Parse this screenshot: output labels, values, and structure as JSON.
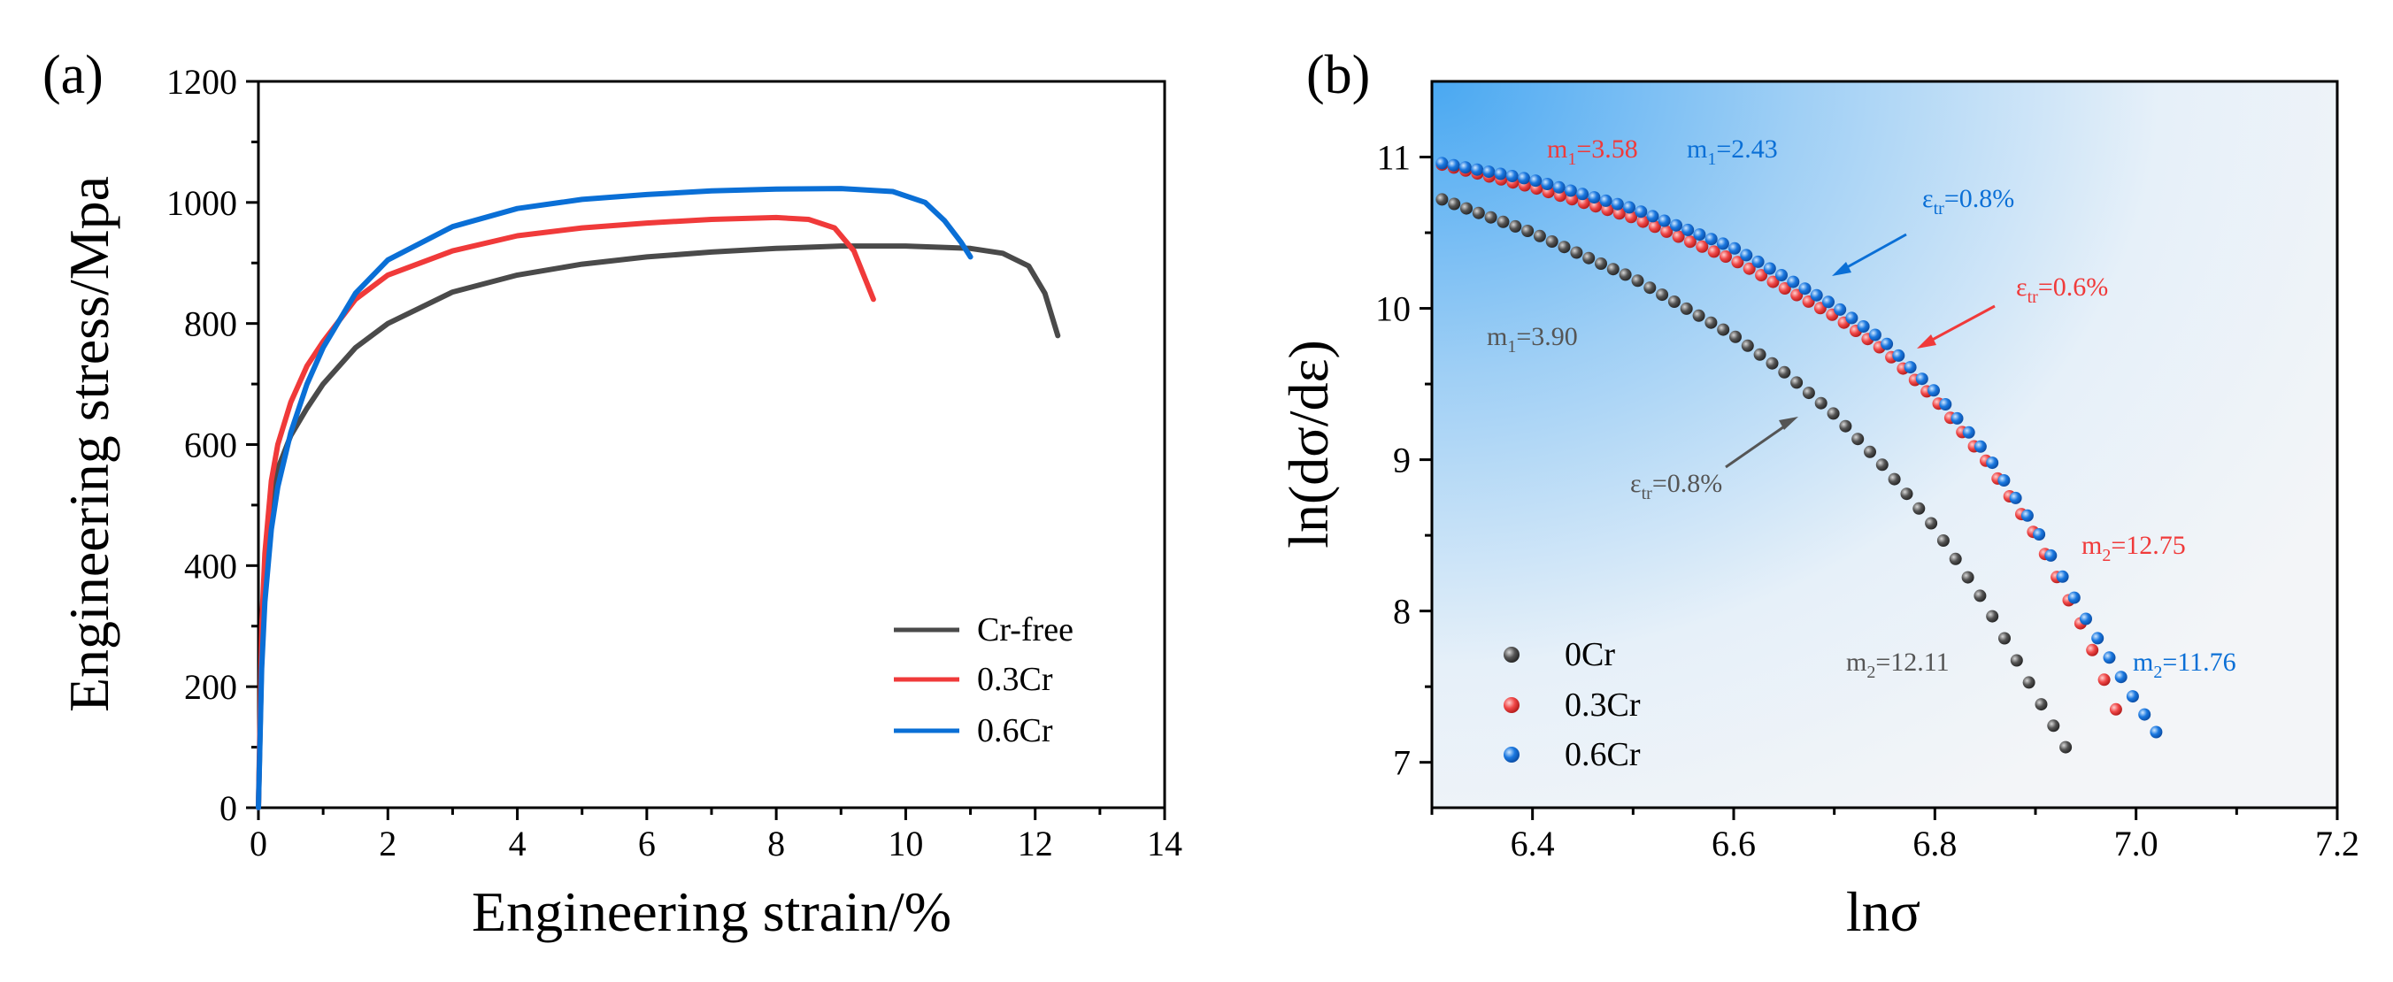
{
  "panel_a": {
    "label": "(a)",
    "legend": [
      "Cr-free",
      "0.3Cr",
      "0.6Cr"
    ]
  },
  "panel_b": {
    "label": "(b)",
    "legend": [
      "0Cr",
      "0.3Cr",
      "0.6Cr"
    ],
    "annotations": {
      "m1_03": {
        "prefix": "m",
        "sub": "1",
        "value": "=3.58"
      },
      "m1_06": {
        "prefix": "m",
        "sub": "1",
        "value": "=2.43"
      },
      "m1_0": {
        "prefix": "m",
        "sub": "1",
        "value": "=3.90"
      },
      "m2_03": {
        "prefix": "m",
        "sub": "2",
        "value": "=12.75"
      },
      "m2_06": {
        "prefix": "m",
        "sub": "2",
        "value": "=11.76"
      },
      "m2_0": {
        "prefix": "m",
        "sub": "2",
        "value": "=12.11"
      },
      "etr_06": {
        "prefix": "ε",
        "sub": "tr",
        "value": "=0.8%"
      },
      "etr_03": {
        "prefix": "ε",
        "sub": "tr",
        "value": "=0.6%"
      },
      "etr_0": {
        "prefix": "ε",
        "sub": "tr",
        "value": "=0.8%"
      }
    }
  },
  "colors": {
    "cr_free": "#4a4a4a",
    "cr_03": "#f03a3a",
    "cr_06": "#0a6fd6",
    "annot_gray": "#555555"
  },
  "chart_data": [
    {
      "type": "line",
      "title": "",
      "xlabel": "Engineering strain/%",
      "ylabel": "Engineering stress/Mpa",
      "xlim": [
        0,
        14
      ],
      "ylim": [
        0,
        1200
      ],
      "xticks": [
        "0",
        "2",
        "4",
        "6",
        "8",
        "10",
        "12",
        "14"
      ],
      "yticks": [
        "0",
        "200",
        "400",
        "600",
        "800",
        "1000",
        "1200"
      ],
      "series": [
        {
          "name": "Cr-free",
          "color": "#4a4a4a",
          "x": [
            0,
            0.05,
            0.1,
            0.2,
            0.3,
            0.5,
            0.75,
            1,
            1.5,
            2,
            3,
            4,
            5,
            6,
            7,
            8,
            9,
            10,
            11,
            11.5,
            11.9,
            12.15,
            12.35
          ],
          "y": [
            0,
            250,
            390,
            500,
            560,
            615,
            660,
            700,
            760,
            800,
            852,
            880,
            898,
            910,
            918,
            924,
            928,
            928,
            924,
            916,
            895,
            850,
            780
          ]
        },
        {
          "name": "0.3Cr",
          "color": "#f03a3a",
          "x": [
            0,
            0.05,
            0.1,
            0.2,
            0.3,
            0.5,
            0.75,
            1,
            1.5,
            2,
            3,
            4,
            5,
            6,
            7,
            8,
            8.5,
            8.9,
            9.2,
            9.5
          ],
          "y": [
            0,
            300,
            420,
            540,
            600,
            670,
            730,
            770,
            840,
            880,
            920,
            945,
            958,
            966,
            972,
            975,
            972,
            958,
            920,
            840
          ]
        },
        {
          "name": "0.6Cr",
          "color": "#0a6fd6",
          "x": [
            0,
            0.05,
            0.1,
            0.2,
            0.3,
            0.5,
            0.75,
            1,
            1.5,
            2,
            3,
            4,
            5,
            6,
            7,
            8,
            9,
            9.8,
            10.3,
            10.6,
            10.85,
            11.0
          ],
          "y": [
            0,
            230,
            340,
            460,
            530,
            620,
            700,
            760,
            850,
            905,
            960,
            990,
            1005,
            1013,
            1019,
            1022,
            1023,
            1018,
            1000,
            970,
            935,
            910
          ]
        }
      ],
      "legend_position": "bottom-right"
    },
    {
      "type": "scatter",
      "title": "",
      "xlabel": "lnσ",
      "ylabel": "ln(dσ/dε)",
      "xlim": [
        6.3,
        7.2
      ],
      "ylim": [
        6.7,
        11.5
      ],
      "xticks": [
        "6.4",
        "6.6",
        "6.8",
        "7.0",
        "7.2"
      ],
      "yticks": [
        "7",
        "8",
        "9",
        "10",
        "11"
      ],
      "series": [
        {
          "name": "0Cr",
          "color": "#3a3a3a",
          "x0": 6.31,
          "x1": 6.93,
          "n": 52,
          "curve_x": [
            6.31,
            6.4,
            6.5,
            6.6,
            6.65,
            6.7,
            6.75,
            6.8,
            6.85,
            6.9,
            6.93
          ],
          "curve_y": [
            10.72,
            10.5,
            10.2,
            9.82,
            9.58,
            9.3,
            8.95,
            8.55,
            8.05,
            7.45,
            7.1
          ]
        },
        {
          "name": "0.3Cr",
          "color": "#f04848",
          "x0": 6.31,
          "x1": 6.98,
          "n": 58,
          "curve_x": [
            6.31,
            6.4,
            6.5,
            6.6,
            6.7,
            6.75,
            6.8,
            6.85,
            6.9,
            6.95,
            6.98
          ],
          "curve_y": [
            10.95,
            10.8,
            10.6,
            10.32,
            9.95,
            9.72,
            9.4,
            9.0,
            8.5,
            7.85,
            7.35
          ]
        },
        {
          "name": "0.6Cr",
          "color": "#1a78e0",
          "x0": 6.31,
          "x1": 7.02,
          "n": 62,
          "curve_x": [
            6.31,
            6.4,
            6.5,
            6.6,
            6.7,
            6.75,
            6.8,
            6.85,
            6.9,
            6.95,
            7.0,
            7.02
          ],
          "curve_y": [
            10.96,
            10.85,
            10.66,
            10.4,
            10.02,
            9.78,
            9.45,
            9.05,
            8.55,
            7.95,
            7.4,
            7.2
          ]
        }
      ],
      "legend_position": "bottom-left"
    }
  ]
}
